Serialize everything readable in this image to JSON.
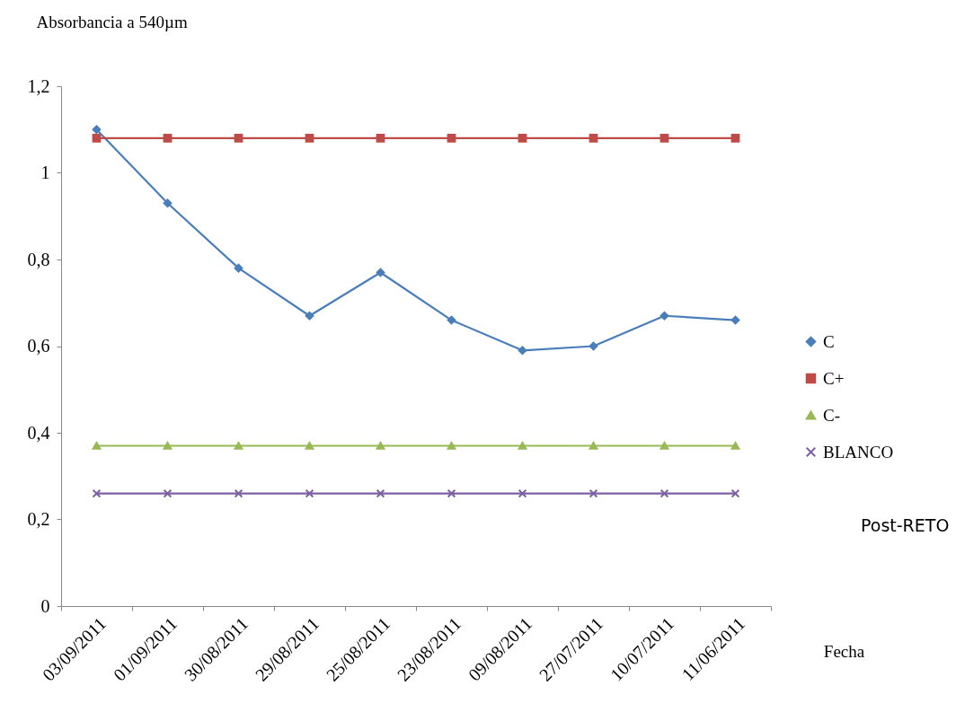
{
  "chart_data": {
    "type": "line",
    "ylabel": "Absorbancia a 540µm",
    "xlabel": "Fecha",
    "categories": [
      "03/09/2011",
      "01/09/2011",
      "30/08/2011",
      "29/08/2011",
      "25/08/2011",
      "23/08/2011",
      "09/08/2011",
      "27/07/2011",
      "10/07/2011",
      "11/06/2011"
    ],
    "series": [
      {
        "name": "C",
        "color": "#4a7ebb",
        "marker": "diamond",
        "values": [
          1.1,
          0.93,
          0.78,
          0.67,
          0.77,
          0.66,
          0.59,
          0.6,
          0.67,
          0.66
        ]
      },
      {
        "name": "C+",
        "color": "#be4b48",
        "marker": "square",
        "values": [
          1.08,
          1.08,
          1.08,
          1.08,
          1.08,
          1.08,
          1.08,
          1.08,
          1.08,
          1.08
        ]
      },
      {
        "name": "C-",
        "color": "#98b954",
        "marker": "triangle",
        "values": [
          0.37,
          0.37,
          0.37,
          0.37,
          0.37,
          0.37,
          0.37,
          0.37,
          0.37,
          0.37
        ]
      },
      {
        "name": "BLANCO",
        "color": "#7d60a0",
        "marker": "cross",
        "values": [
          0.26,
          0.26,
          0.26,
          0.26,
          0.26,
          0.26,
          0.26,
          0.26,
          0.26,
          0.26
        ]
      }
    ],
    "ylim": [
      0,
      1.2
    ],
    "yticks": [
      0,
      {
        "value": 0.2,
        "label": "0,2"
      },
      {
        "value": 0.4,
        "label": "0,4"
      },
      {
        "value": 0.6,
        "label": "0,6"
      },
      {
        "value": 0.8,
        "label": "0,8"
      },
      1,
      {
        "value": 1.2,
        "label": "1,2"
      }
    ],
    "grid": false,
    "legend": "right",
    "line_style": "solid",
    "annotations": [
      "Post-RETO"
    ]
  }
}
